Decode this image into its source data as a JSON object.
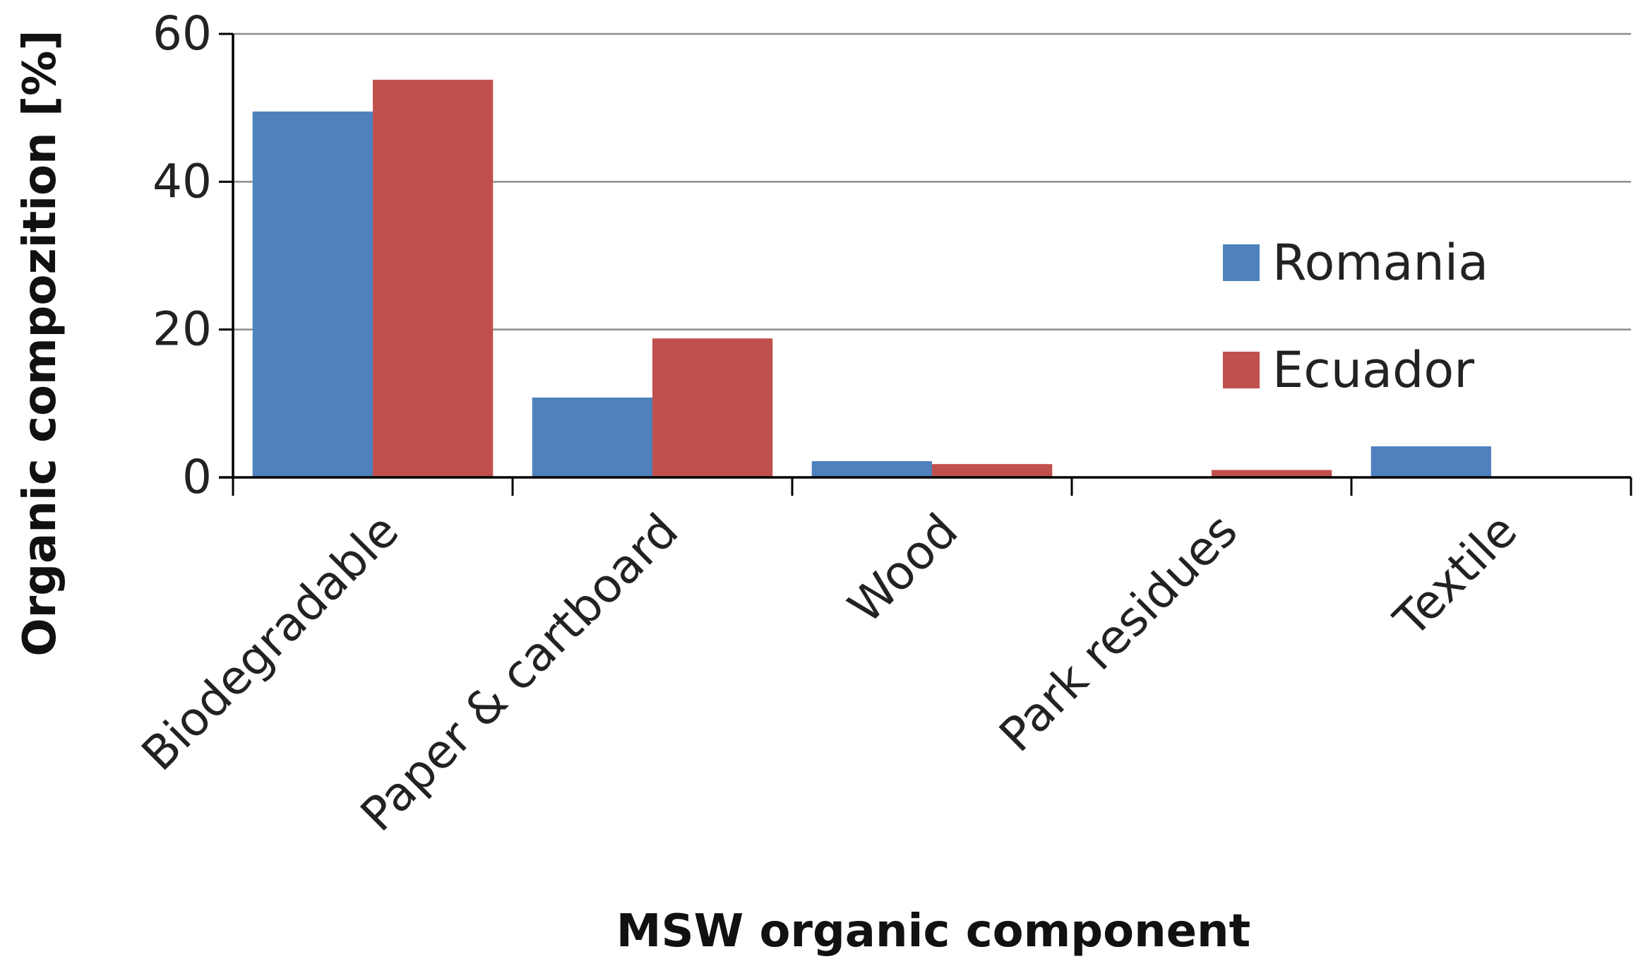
{
  "chart_data": {
    "type": "bar",
    "title": "",
    "xlabel": "MSW organic component",
    "ylabel": "Organic compozition [%]",
    "categories": [
      "Biodegradable",
      "Paper & cartboard",
      "Wood",
      "Park residues",
      "Textile"
    ],
    "series": [
      {
        "name": "Romania",
        "color": "#4F81BD",
        "values": [
          49.5,
          10.8,
          2.2,
          0,
          4.2
        ]
      },
      {
        "name": "Ecuador",
        "color": "#C0504D",
        "values": [
          53.8,
          18.8,
          1.8,
          1.0,
          0
        ]
      }
    ],
    "ylim": [
      0,
      60
    ],
    "yticks": [
      0,
      20,
      40,
      60
    ],
    "grid": true,
    "legend_position": "right"
  }
}
